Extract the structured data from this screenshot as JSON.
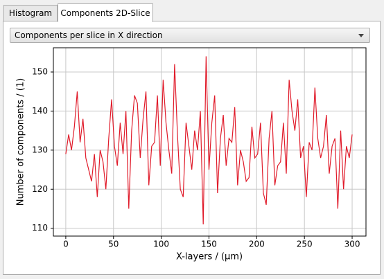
{
  "tabs": [
    "Histogram",
    "Components 2D-Slice"
  ],
  "dropdown": {
    "selected": "Components per slice in X direction"
  },
  "chart_data": {
    "type": "line",
    "x_label": "X-layers / (µm)",
    "y_label": "Number of components / (1)",
    "x": [
      0,
      3,
      6,
      9,
      12,
      15,
      18,
      21,
      24,
      27,
      30,
      33,
      36,
      39,
      42,
      45,
      48,
      51,
      54,
      57,
      60,
      63,
      66,
      69,
      72,
      75,
      78,
      81,
      84,
      87,
      90,
      93,
      96,
      99,
      102,
      105,
      108,
      111,
      114,
      117,
      120,
      123,
      126,
      129,
      132,
      135,
      138,
      141,
      144,
      147,
      150,
      153,
      156,
      159,
      162,
      165,
      168,
      171,
      174,
      177,
      180,
      183,
      186,
      189,
      192,
      195,
      198,
      201,
      204,
      207,
      210,
      213,
      216,
      219,
      222,
      225,
      228,
      231,
      234,
      237,
      240,
      243,
      246,
      249,
      252,
      255,
      258,
      261,
      264,
      267,
      270,
      273,
      276,
      279,
      282,
      285,
      288,
      291,
      294,
      297,
      300
    ],
    "series": [
      {
        "name": "Components",
        "color": "#e01b2a",
        "values": [
          129,
          134,
          130,
          136,
          145,
          132,
          138,
          128,
          125,
          122,
          129,
          118,
          130,
          127,
          120,
          133,
          143,
          131,
          126,
          137,
          129,
          140,
          115,
          135,
          144,
          142,
          128,
          138,
          145,
          121,
          131,
          132,
          144,
          126,
          148,
          137,
          130,
          124,
          152,
          134,
          120,
          118,
          137,
          131,
          125,
          135,
          130,
          140,
          111,
          154,
          125,
          137,
          144,
          119,
          133,
          139,
          126,
          133,
          132,
          141,
          121,
          130,
          127,
          122,
          123,
          136,
          128,
          129,
          137,
          119,
          116,
          133,
          140,
          121,
          126,
          127,
          137,
          124,
          148,
          140,
          135,
          143,
          128,
          131,
          118,
          132,
          130,
          146,
          133,
          128,
          131,
          139,
          124,
          131,
          133,
          115,
          135,
          120,
          131,
          128,
          134
        ]
      }
    ],
    "xlim": [
      -13,
      314.5
    ],
    "ylim": [
      108,
      156.2
    ],
    "xticks": [
      0,
      50,
      100,
      150,
      200,
      250,
      300
    ],
    "yticks": [
      110,
      120,
      130,
      140,
      150
    ],
    "grid": true
  }
}
